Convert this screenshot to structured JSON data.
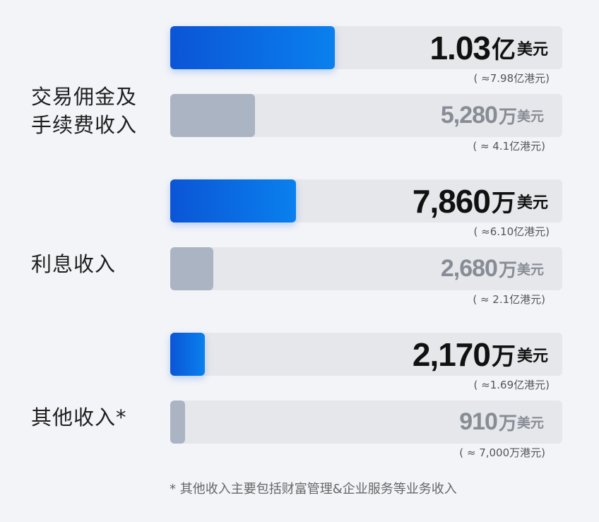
{
  "chart_data": {
    "type": "bar",
    "orientation": "horizontal",
    "unit": "万美元",
    "xlim": [
      0,
      24500
    ],
    "grid": false,
    "categories": [
      "交易佣金及手续费收入",
      "利息收入",
      "其他收入*"
    ],
    "category_lines": [
      [
        "交易佣金及",
        "手续费收入"
      ],
      [
        "利息收入"
      ],
      [
        "其他收入*"
      ]
    ],
    "series": [
      {
        "values": [
          10300,
          7860,
          2170
        ],
        "color": "#0a6ae6",
        "value_labels": [
          {
            "num": "1.03",
            "mag": "亿",
            "unit": "美元"
          },
          {
            "num": "7,860",
            "mag": "万",
            "unit": "美元"
          },
          {
            "num": "2,170",
            "mag": "万",
            "unit": "美元"
          }
        ],
        "hkd_labels": [
          "( ≈7.98亿港元)",
          "( ≈6.10亿港元)",
          "( ≈1.69亿港元)"
        ]
      },
      {
        "values": [
          5280,
          2680,
          910
        ],
        "color": "#aab4c3",
        "value_labels": [
          {
            "num": "5,280",
            "mag": "万",
            "unit": "美元"
          },
          {
            "num": "2,680",
            "mag": "万",
            "unit": "美元"
          },
          {
            "num": "910",
            "mag": "万",
            "unit": "美元"
          }
        ],
        "hkd_labels": [
          "( ≈ 4.1亿港元)",
          "( ≈ 2.1亿港元)",
          "( ≈ 7,000万港元)"
        ]
      }
    ],
    "footnote": "* 其他收入主要包括财富管理&企业服务等业务收入"
  }
}
